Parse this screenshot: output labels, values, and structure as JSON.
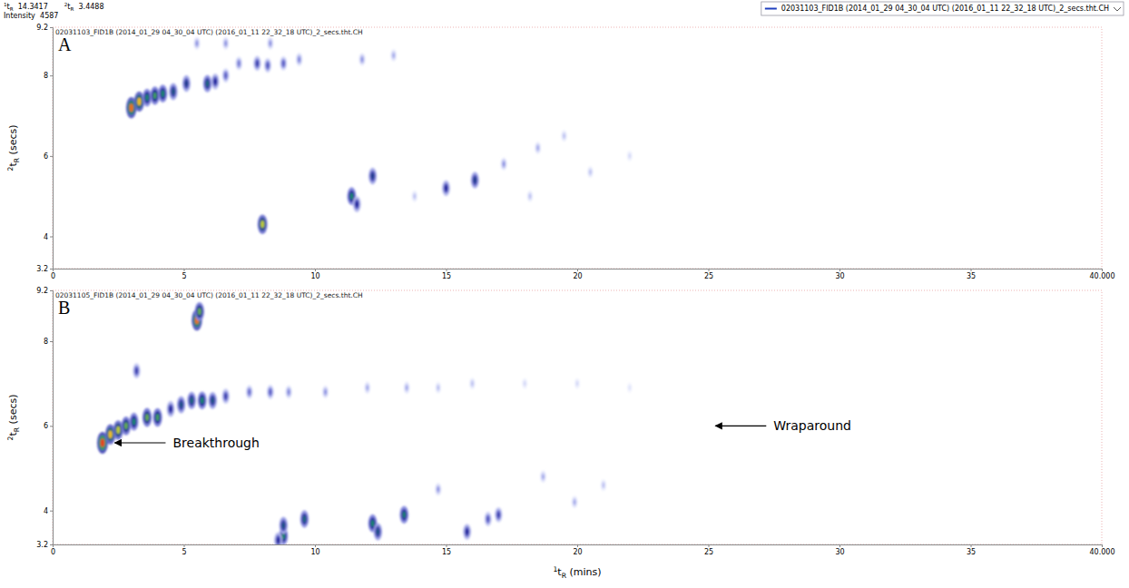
{
  "header": {
    "cursor": [
      {
        "label": [
          "1",
          "t",
          "R"
        ],
        "value": 14.3417
      },
      {
        "label": [
          "2",
          "t",
          "R"
        ],
        "value": 3.4488
      },
      {
        "label": [
          "Intensity"
        ],
        "value": 4587
      }
    ],
    "file": "02031103_FID1B (2014_01_29 04_30_04 UTC) (2016_01_11 22_32_18 UTC)_2_secs.tht.CH"
  },
  "chart_data": [
    {
      "type": "heatmap",
      "panel": "A",
      "subtitle": "02031103_FID1B (2014_01_29 04_30_04 UTC) (2016_01_11 22_32_18 UTC)_2_secs.tht.CH",
      "y_label": [
        "2",
        "t",
        "R",
        " (secs)"
      ],
      "xlim": [
        0,
        40
      ],
      "xticks": [
        0,
        5,
        10,
        15,
        20,
        25,
        30,
        35,
        {
          "value": 40,
          "label": "40.000"
        }
      ],
      "ylim": [
        3.2,
        9.2
      ],
      "yticks": [
        3.2,
        4,
        6,
        8,
        9.2
      ],
      "zlim": [
        0,
        5000
      ],
      "peaks": {
        "x": [
          3.0,
          3.3,
          3.6,
          3.9,
          4.2,
          4.6,
          5.1,
          5.9,
          6.2,
          6.6,
          7.1,
          7.8,
          8.2,
          8.8,
          9.4,
          11.8,
          13.0,
          5.5,
          6.6,
          8.3,
          8.0,
          11.4,
          11.6,
          12.2,
          15.0,
          16.1,
          17.2,
          18.5,
          19.5,
          13.8,
          20.5,
          22.0,
          18.2
        ],
        "y": [
          7.2,
          7.35,
          7.45,
          7.5,
          7.55,
          7.6,
          7.8,
          7.8,
          7.85,
          8.0,
          8.3,
          8.3,
          8.25,
          8.3,
          8.4,
          8.4,
          8.5,
          8.8,
          8.8,
          8.8,
          4.3,
          5.0,
          4.8,
          5.5,
          5.2,
          5.4,
          5.8,
          6.2,
          6.5,
          5.0,
          5.6,
          6.0,
          5.0
        ],
        "intensity": [
          4500,
          4000,
          2500,
          2800,
          2500,
          2000,
          1800,
          2200,
          1500,
          900,
          700,
          1200,
          1000,
          900,
          600,
          500,
          400,
          500,
          500,
          500,
          3500,
          2500,
          1500,
          1800,
          1500,
          1800,
          500,
          400,
          300,
          300,
          300,
          200,
          300
        ]
      },
      "annotations": []
    },
    {
      "type": "heatmap",
      "panel": "B",
      "subtitle": "02031105_FID1B (2014_01_29 04_30_04 UTC) (2016_01_11 22_32_18 UTC)_2_secs.tht.CH",
      "y_label": [
        "2",
        "t",
        "R",
        " (secs)"
      ],
      "x_label": [
        "1",
        "t",
        "R",
        " (mins)"
      ],
      "xlim": [
        0,
        40
      ],
      "xticks": [
        0,
        5,
        10,
        15,
        20,
        25,
        30,
        35,
        {
          "value": 40,
          "label": "40.000"
        }
      ],
      "ylim": [
        3.2,
        9.2
      ],
      "yticks": [
        3.2,
        4,
        6,
        8,
        9.2
      ],
      "zlim": [
        0,
        5000
      ],
      "peaks": {
        "x": [
          1.9,
          2.2,
          2.5,
          2.8,
          3.1,
          3.6,
          4.0,
          4.5,
          4.9,
          5.3,
          5.7,
          6.1,
          6.6,
          7.5,
          8.3,
          9.0,
          10.4,
          12.0,
          13.5,
          14.7,
          16.0,
          18.0,
          20.0,
          22.0,
          3.2,
          5.5,
          5.6,
          8.8,
          8.8,
          8.6,
          9.6,
          12.2,
          12.4,
          13.4,
          15.8,
          16.6,
          17.0,
          14.7,
          18.7,
          19.9,
          21.0
        ],
        "y": [
          5.6,
          5.8,
          5.9,
          6.0,
          6.1,
          6.2,
          6.2,
          6.4,
          6.5,
          6.6,
          6.6,
          6.6,
          6.7,
          6.8,
          6.8,
          6.8,
          6.8,
          6.9,
          6.9,
          6.9,
          7.0,
          7.0,
          7.0,
          6.9,
          7.3,
          8.5,
          8.7,
          3.4,
          3.65,
          3.3,
          3.8,
          3.7,
          3.5,
          3.9,
          3.5,
          3.8,
          3.9,
          4.5,
          4.8,
          4.2,
          4.6
        ],
        "intensity": [
          5000,
          4000,
          3500,
          3000,
          2500,
          3000,
          2800,
          1500,
          2000,
          2200,
          2500,
          2000,
          1200,
          800,
          900,
          600,
          500,
          400,
          400,
          300,
          300,
          200,
          200,
          150,
          1200,
          4500,
          3000,
          2500,
          2000,
          1500,
          2200,
          2500,
          2000,
          2400,
          1500,
          1000,
          1200,
          500,
          400,
          400,
          300
        ]
      },
      "annotations": [
        {
          "text": "Breakthrough",
          "x": 2.3,
          "y": 5.6
        },
        {
          "text": "Wraparound",
          "x": 25.2,
          "y": 6.0
        }
      ]
    }
  ]
}
